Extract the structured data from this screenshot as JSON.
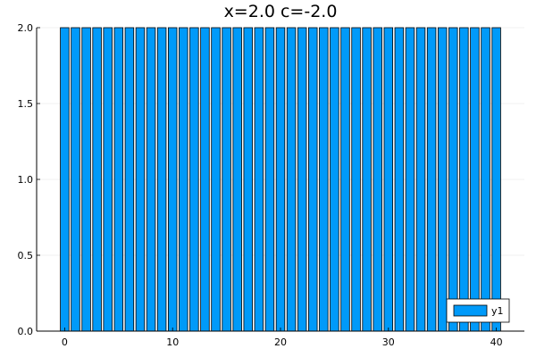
{
  "chart_data": {
    "type": "bar",
    "title": "x=2.0 c=-2.0",
    "xlabel": "",
    "ylabel": "",
    "x": [
      0,
      1,
      2,
      3,
      4,
      5,
      6,
      7,
      8,
      9,
      10,
      11,
      12,
      13,
      14,
      15,
      16,
      17,
      18,
      19,
      20,
      21,
      22,
      23,
      24,
      25,
      26,
      27,
      28,
      29,
      30,
      31,
      32,
      33,
      34,
      35,
      36,
      37,
      38,
      39,
      40
    ],
    "series": [
      {
        "name": "y1",
        "color": "#009af9",
        "values": [
          2.0,
          2.0,
          2.0,
          2.0,
          2.0,
          2.0,
          2.0,
          2.0,
          2.0,
          2.0,
          2.0,
          2.0,
          2.0,
          2.0,
          2.0,
          2.0,
          2.0,
          2.0,
          2.0,
          2.0,
          2.0,
          2.0,
          2.0,
          2.0,
          2.0,
          2.0,
          2.0,
          2.0,
          2.0,
          2.0,
          2.0,
          2.0,
          2.0,
          2.0,
          2.0,
          2.0,
          2.0,
          2.0,
          2.0,
          2.0,
          2.0
        ]
      }
    ],
    "xlim": [
      -2.6,
      42.6
    ],
    "ylim": [
      0,
      2.0
    ],
    "xticks": [
      0,
      10,
      20,
      30,
      40
    ],
    "xtick_labels": [
      "0",
      "10",
      "20",
      "30",
      "40"
    ],
    "yticks": [
      0.0,
      0.5,
      1.0,
      1.5,
      2.0
    ],
    "ytick_labels": [
      "0.0",
      "0.5",
      "1.0",
      "1.5",
      "2.0"
    ],
    "grid": true,
    "legend_position": "bottom-right"
  }
}
